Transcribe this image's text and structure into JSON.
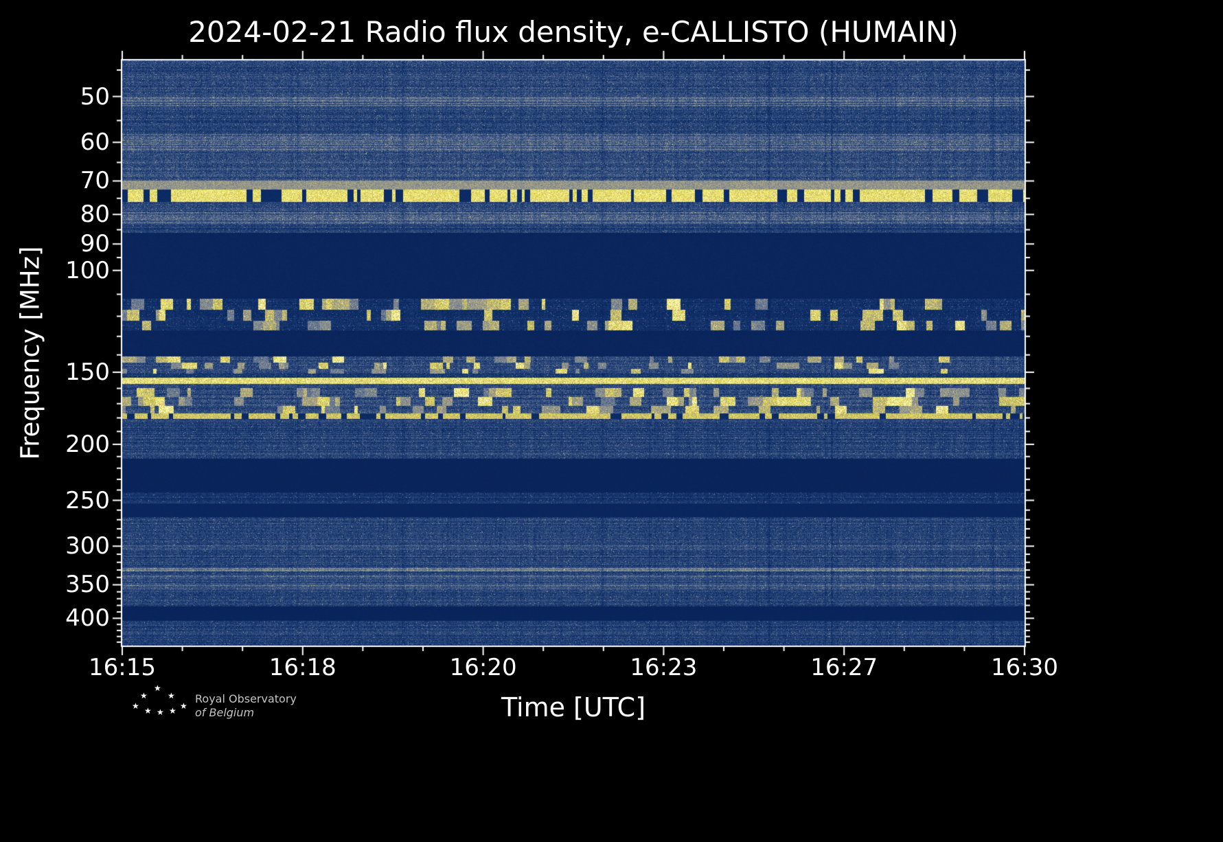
{
  "chart_data": {
    "type": "heatmap",
    "subtype": "solar-radio-spectrogram",
    "title": "2024-02-21 Radio flux density, e-CALLISTO (HUMAIN)",
    "xlabel": "Time [UTC]",
    "ylabel": "Frequency [MHz]",
    "x_ticks": [
      "16:15",
      "16:18",
      "16:20",
      "16:23",
      "16:27",
      "16:30"
    ],
    "x_minor_per_interval": 2,
    "y_scale": "log",
    "y_axis_inverted": true,
    "y_range": [
      43.3,
      446
    ],
    "y_ticks": [
      50,
      60,
      70,
      80,
      90,
      100,
      150,
      200,
      250,
      300,
      350,
      400
    ],
    "y_minor_ticks": [
      45,
      55,
      65,
      75,
      85,
      95,
      110,
      120,
      130,
      140,
      160,
      170,
      180,
      190,
      210,
      220,
      230,
      240,
      260,
      270,
      280,
      290,
      310,
      320,
      330,
      340,
      360,
      370,
      380,
      390,
      410,
      420,
      430,
      440
    ],
    "colors": {
      "background": "#000000",
      "axis": "#ffffff",
      "text": "#ffffff",
      "colormap_stops": [
        [
          0,
          "#061a4a"
        ],
        [
          0.2,
          "#0d2d67"
        ],
        [
          0.4,
          "#3a5584"
        ],
        [
          0.55,
          "#7a8597"
        ],
        [
          0.7,
          "#b0a87e"
        ],
        [
          0.85,
          "#ece14e"
        ],
        [
          1,
          "#fffde0"
        ]
      ]
    },
    "bands": [
      {
        "f": [
          43.3,
          50
        ],
        "kind": "noise",
        "base": 0.3,
        "speck": 0.24,
        "label": "broadband noise 43-50 MHz"
      },
      {
        "f": [
          50,
          52
        ],
        "kind": "noise",
        "base": 0.4,
        "speck": 0.22,
        "label": "RFI line ~51 MHz"
      },
      {
        "f": [
          52,
          58
        ],
        "kind": "noise",
        "base": 0.28,
        "speck": 0.22,
        "label": "noise 52-58 MHz"
      },
      {
        "f": [
          58,
          62
        ],
        "kind": "noise",
        "base": 0.4,
        "speck": 0.24,
        "label": "brighter band ~60 MHz"
      },
      {
        "f": [
          62,
          70
        ],
        "kind": "noise",
        "base": 0.3,
        "speck": 0.24,
        "label": "noise 62-70 MHz"
      },
      {
        "f": [
          70,
          72.5
        ],
        "kind": "line",
        "base": 0.66,
        "speck": 0.12,
        "label": "bright RFI line ~71 MHz"
      },
      {
        "f": [
          72.5,
          76
        ],
        "kind": "dashed",
        "base": 0.88,
        "speck": 0.1,
        "label": "dashed bright RFI ~74 MHz"
      },
      {
        "f": [
          76,
          79
        ],
        "kind": "noise",
        "base": 0.3,
        "speck": 0.22,
        "label": "noise 76-79 MHz"
      },
      {
        "f": [
          79,
          83
        ],
        "kind": "noise",
        "base": 0.38,
        "speck": 0.24,
        "label": "band ~80 MHz"
      },
      {
        "f": [
          83,
          86
        ],
        "kind": "noise",
        "base": 0.26,
        "speck": 0.18,
        "label": "noise 83-86 MHz"
      },
      {
        "f": [
          86,
          112
        ],
        "kind": "quiet",
        "base": 0.13,
        "speck": 0.03,
        "label": "quiet gap 86-112 MHz"
      },
      {
        "f": [
          112,
          127
        ],
        "kind": "blocks",
        "base": 0.2,
        "speck": 0.14,
        "p": 0.3,
        "label": "intermittent bright RFI 115-125 MHz"
      },
      {
        "f": [
          127,
          141
        ],
        "kind": "quiet",
        "base": 0.13,
        "speck": 0.03,
        "label": "quiet gap 127-141 MHz"
      },
      {
        "f": [
          141,
          151
        ],
        "kind": "blocks",
        "base": 0.3,
        "speck": 0.22,
        "p": 0.25,
        "label": "speckled band ~145 MHz"
      },
      {
        "f": [
          151,
          153.5
        ],
        "kind": "noise",
        "base": 0.26,
        "speck": 0.18,
        "label": "noise 151-153 MHz"
      },
      {
        "f": [
          153.5,
          157
        ],
        "kind": "line",
        "base": 0.9,
        "speck": 0.08,
        "label": "strong solid RFI line ~155 MHz"
      },
      {
        "f": [
          157,
          160
        ],
        "kind": "noise",
        "base": 0.3,
        "speck": 0.2,
        "label": "noise 157-160 MHz"
      },
      {
        "f": [
          160,
          177
        ],
        "kind": "blocks",
        "base": 0.32,
        "speck": 0.24,
        "p": 0.4,
        "label": "strong blocky RFI 160-177 MHz"
      },
      {
        "f": [
          177,
          180.5
        ],
        "kind": "dashed",
        "base": 0.8,
        "speck": 0.12,
        "label": "dotted RFI line ~179 MHz"
      },
      {
        "f": [
          180.5,
          212
        ],
        "kind": "noise",
        "base": 0.28,
        "speck": 0.2,
        "label": "noise 180-212 MHz"
      },
      {
        "f": [
          212,
          242
        ],
        "kind": "quiet",
        "base": 0.12,
        "speck": 0.03,
        "label": "quiet gap 212-242 MHz"
      },
      {
        "f": [
          242,
          253
        ],
        "kind": "noise",
        "base": 0.24,
        "speck": 0.14,
        "label": "faint band ~248 MHz"
      },
      {
        "f": [
          253,
          267
        ],
        "kind": "quiet",
        "base": 0.14,
        "speck": 0.04,
        "label": "quiet gap 253-267 MHz"
      },
      {
        "f": [
          267,
          299
        ],
        "kind": "noise",
        "base": 0.28,
        "speck": 0.2,
        "label": "noise 267-299 MHz"
      },
      {
        "f": [
          299,
          304
        ],
        "kind": "noise",
        "base": 0.36,
        "speck": 0.22,
        "label": "band ~300 MHz"
      },
      {
        "f": [
          304,
          327
        ],
        "kind": "noise",
        "base": 0.28,
        "speck": 0.2,
        "label": "noise 304-327 MHz"
      },
      {
        "f": [
          327,
          332
        ],
        "kind": "noise",
        "base": 0.46,
        "speck": 0.22,
        "label": "tan line ~330 MHz"
      },
      {
        "f": [
          332,
          337
        ],
        "kind": "noise",
        "base": 0.3,
        "speck": 0.2,
        "label": "noise 332-337 MHz"
      },
      {
        "f": [
          337,
          342
        ],
        "kind": "noise",
        "base": 0.42,
        "speck": 0.22,
        "label": "line ~340 MHz"
      },
      {
        "f": [
          342,
          351
        ],
        "kind": "noise",
        "base": 0.3,
        "speck": 0.2,
        "label": "noise 342-351 MHz"
      },
      {
        "f": [
          351,
          356
        ],
        "kind": "noise",
        "base": 0.4,
        "speck": 0.2,
        "label": "line ~353 MHz"
      },
      {
        "f": [
          356,
          382
        ],
        "kind": "noise",
        "base": 0.28,
        "speck": 0.2,
        "label": "noise 356-382 MHz"
      },
      {
        "f": [
          382,
          404
        ],
        "kind": "quiet",
        "base": 0.12,
        "speck": 0.03,
        "label": "quiet gap 382-404 MHz"
      },
      {
        "f": [
          404,
          446
        ],
        "kind": "noise",
        "base": 0.27,
        "speck": 0.2,
        "label": "noise 404-446 MHz"
      }
    ]
  },
  "logo": {
    "line1": "Royal Observatory",
    "line2": "of Belgium"
  }
}
